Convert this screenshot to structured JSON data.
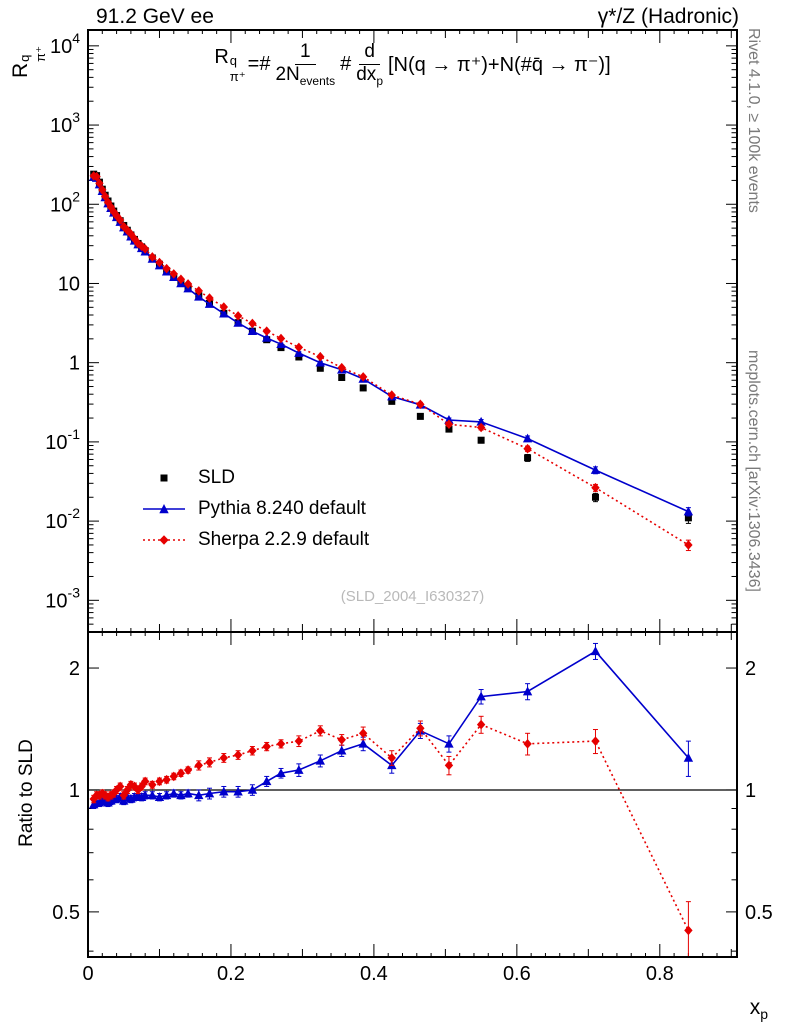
{
  "header": {
    "beam": "91.2 GeV ee",
    "process": "γ*/Z (Hadronic)"
  },
  "side_notes": {
    "top": "Rivet 4.1.0, ≥ 100k events",
    "bottom": "mcplots.cern.ch [arXiv:1306.3436]"
  },
  "watermark": "(SLD_2004_I630327)",
  "axis_labels": {
    "y_main_base": "R",
    "y_main_sup": "q",
    "y_main_sub": "π⁺",
    "y_ratio": "Ratio to SLD",
    "x_base": "x",
    "x_sub": "p"
  },
  "formula": {
    "lhs_base": "R",
    "lhs_sup": "q",
    "lhs_sub": "π⁺",
    "eq": "=#",
    "frac1_num": "1",
    "frac1_den": "2N",
    "frac1_den_sub": "events",
    "sep": "#",
    "frac2_num": "d",
    "frac2_den": "dx",
    "frac2_den_sub": "p",
    "rhs": "[N(q → π⁺)+N(#q̄ → π⁻)]"
  },
  "legend": {
    "items": [
      {
        "label": "SLD",
        "marker": "square",
        "color": "#000000",
        "line": "none"
      },
      {
        "label": "Pythia 8.240 default",
        "marker": "triangle",
        "color": "#0000cc",
        "line": "solid"
      },
      {
        "label": "Sherpa 2.2.9 default",
        "marker": "diamond",
        "color": "#e60000",
        "line": "dotted"
      }
    ]
  },
  "chart_data": [
    {
      "type": "scatter",
      "title": "pi+ scaled momentum spectrum in hadronic Z decays",
      "xlabel": "x_p",
      "ylabel": "R_pi+^q",
      "xlim": [
        0,
        0.908
      ],
      "ylog_range": [
        -3.4,
        4.2
      ],
      "y_tick_exponents": [
        4,
        3,
        2,
        1,
        0,
        -1,
        -2,
        -3
      ],
      "x_ticks": [
        0,
        0.2,
        0.4,
        0.6,
        0.8
      ],
      "x_minor_step": 0.02,
      "x_medium_step": 0.1,
      "x_major_step": 0.2,
      "series": [
        {
          "name": "SLD",
          "marker": "square",
          "color": "#000000",
          "line": "none",
          "x": [
            0.008,
            0.012,
            0.016,
            0.02,
            0.024,
            0.028,
            0.032,
            0.036,
            0.04,
            0.045,
            0.05,
            0.055,
            0.06,
            0.065,
            0.07,
            0.075,
            0.08,
            0.09,
            0.1,
            0.11,
            0.12,
            0.13,
            0.14,
            0.155,
            0.17,
            0.19,
            0.21,
            0.23,
            0.25,
            0.27,
            0.295,
            0.325,
            0.355,
            0.385,
            0.425,
            0.465,
            0.505,
            0.55,
            0.615,
            0.71,
            0.84
          ],
          "y": [
            240,
            230,
            190,
            155,
            130,
            110,
            95,
            82,
            72,
            62,
            54,
            47,
            41,
            36,
            32,
            29,
            26,
            21,
            17.5,
            14.5,
            12.2,
            10.3,
            8.8,
            7.0,
            5.6,
            4.2,
            3.2,
            2.5,
            1.95,
            1.55,
            1.18,
            0.85,
            0.65,
            0.48,
            0.325,
            0.21,
            0.145,
            0.105,
            0.063,
            0.02,
            0.011
          ],
          "yerr_frac": [
            0.04,
            0.04,
            0.04,
            0.04,
            0.04,
            0.04,
            0.04,
            0.04,
            0.04,
            0.04,
            0.04,
            0.04,
            0.04,
            0.04,
            0.04,
            0.04,
            0.04,
            0.04,
            0.04,
            0.04,
            0.04,
            0.04,
            0.04,
            0.04,
            0.04,
            0.04,
            0.04,
            0.04,
            0.04,
            0.04,
            0.05,
            0.05,
            0.05,
            0.06,
            0.06,
            0.07,
            0.08,
            0.08,
            0.1,
            0.12,
            0.15
          ]
        },
        {
          "name": "Pythia 8.240 default",
          "marker": "triangle",
          "color": "#0000cc",
          "line": "solid",
          "x": [
            0.008,
            0.012,
            0.016,
            0.02,
            0.024,
            0.028,
            0.032,
            0.036,
            0.04,
            0.045,
            0.05,
            0.055,
            0.06,
            0.065,
            0.07,
            0.075,
            0.08,
            0.09,
            0.1,
            0.11,
            0.12,
            0.13,
            0.14,
            0.155,
            0.17,
            0.19,
            0.21,
            0.23,
            0.25,
            0.27,
            0.295,
            0.325,
            0.355,
            0.385,
            0.425,
            0.465,
            0.505,
            0.55,
            0.615,
            0.71,
            0.84
          ],
          "y": [
            221,
            214,
            177,
            146,
            122,
            102,
            89.3,
            77.9,
            68.4,
            59.5,
            50.8,
            45.1,
            39,
            34.6,
            31,
            27.8,
            25.2,
            20.4,
            16.8,
            14.1,
            12,
            10,
            8.62,
            6.79,
            5.49,
            4.16,
            3.17,
            2.5,
            2.05,
            1.71,
            1.32,
            1.0,
            0.813,
            0.624,
            0.374,
            0.294,
            0.189,
            0.179,
            0.11,
            0.044,
            0.0132
          ],
          "yerr_frac": [
            0.02,
            0.02,
            0.02,
            0.02,
            0.02,
            0.02,
            0.02,
            0.02,
            0.02,
            0.02,
            0.02,
            0.02,
            0.02,
            0.02,
            0.02,
            0.02,
            0.02,
            0.02,
            0.02,
            0.02,
            0.02,
            0.02,
            0.02,
            0.03,
            0.03,
            0.03,
            0.03,
            0.03,
            0.03,
            0.03,
            0.04,
            0.04,
            0.04,
            0.05,
            0.05,
            0.06,
            0.06,
            0.07,
            0.08,
            0.1,
            0.12
          ]
        },
        {
          "name": "Sherpa 2.2.9 default",
          "marker": "diamond",
          "color": "#e60000",
          "line": "dotted",
          "x": [
            0.008,
            0.012,
            0.016,
            0.02,
            0.024,
            0.028,
            0.032,
            0.036,
            0.04,
            0.045,
            0.05,
            0.055,
            0.06,
            0.065,
            0.07,
            0.075,
            0.08,
            0.09,
            0.1,
            0.11,
            0.12,
            0.13,
            0.14,
            0.155,
            0.17,
            0.19,
            0.21,
            0.23,
            0.25,
            0.27,
            0.295,
            0.325,
            0.355,
            0.385,
            0.425,
            0.465,
            0.505,
            0.55,
            0.615,
            0.71,
            0.84
          ],
          "y": [
            228,
            223,
            184,
            152,
            126,
            106,
            92.2,
            80.4,
            72,
            63.2,
            52.4,
            47,
            42.2,
            36.7,
            32,
            29.6,
            27.3,
            21.6,
            18.4,
            15.4,
            13.2,
            11.3,
            9.86,
            8.05,
            6.55,
            5.04,
            3.9,
            3.13,
            2.5,
            2.02,
            1.56,
            1.19,
            0.865,
            0.662,
            0.39,
            0.298,
            0.167,
            0.152,
            0.082,
            0.0264,
            0.005
          ],
          "yerr_frac": [
            0.02,
            0.02,
            0.02,
            0.02,
            0.02,
            0.02,
            0.02,
            0.02,
            0.02,
            0.02,
            0.02,
            0.02,
            0.02,
            0.02,
            0.02,
            0.02,
            0.02,
            0.02,
            0.02,
            0.02,
            0.02,
            0.02,
            0.02,
            0.03,
            0.03,
            0.03,
            0.03,
            0.03,
            0.03,
            0.03,
            0.04,
            0.04,
            0.04,
            0.05,
            0.05,
            0.06,
            0.06,
            0.07,
            0.08,
            0.1,
            0.15
          ]
        }
      ]
    },
    {
      "type": "ratio",
      "ylabel": "Ratio to SLD",
      "ylog_range": [
        -0.4124,
        0.39
      ],
      "y_ticks": [
        {
          "v": 2,
          "label": "2"
        },
        {
          "v": 1,
          "label": "1"
        },
        {
          "v": 0.5,
          "label": "0.5"
        }
      ],
      "y_minor_ticks": [
        0.4,
        0.6,
        0.7,
        0.8,
        0.9
      ],
      "baseline": 1,
      "series": [
        {
          "name": "Pythia 8.240 default",
          "marker": "triangle",
          "color": "#0000cc",
          "line": "solid",
          "x": [
            0.008,
            0.012,
            0.016,
            0.02,
            0.024,
            0.028,
            0.032,
            0.036,
            0.04,
            0.045,
            0.05,
            0.055,
            0.06,
            0.065,
            0.07,
            0.075,
            0.08,
            0.09,
            0.1,
            0.11,
            0.12,
            0.13,
            0.14,
            0.155,
            0.17,
            0.19,
            0.21,
            0.23,
            0.25,
            0.27,
            0.295,
            0.325,
            0.355,
            0.385,
            0.425,
            0.465,
            0.505,
            0.55,
            0.615,
            0.71,
            0.84
          ],
          "y": [
            0.92,
            0.93,
            0.93,
            0.94,
            0.94,
            0.93,
            0.94,
            0.95,
            0.95,
            0.96,
            0.94,
            0.96,
            0.95,
            0.96,
            0.97,
            0.96,
            0.97,
            0.97,
            0.96,
            0.97,
            0.98,
            0.97,
            0.98,
            0.97,
            0.98,
            0.99,
            0.99,
            1.0,
            1.05,
            1.1,
            1.12,
            1.18,
            1.25,
            1.3,
            1.15,
            1.4,
            1.3,
            1.7,
            1.75,
            2.2,
            1.2
          ],
          "yerr": [
            0.02,
            0.02,
            0.02,
            0.02,
            0.02,
            0.02,
            0.02,
            0.02,
            0.02,
            0.02,
            0.02,
            0.02,
            0.02,
            0.02,
            0.02,
            0.02,
            0.02,
            0.02,
            0.02,
            0.02,
            0.02,
            0.02,
            0.02,
            0.03,
            0.03,
            0.03,
            0.03,
            0.03,
            0.03,
            0.03,
            0.04,
            0.04,
            0.04,
            0.05,
            0.05,
            0.06,
            0.06,
            0.07,
            0.08,
            0.1,
            0.12
          ]
        },
        {
          "name": "Sherpa 2.2.9 default",
          "marker": "diamond",
          "color": "#e60000",
          "line": "dotted",
          "x": [
            0.008,
            0.012,
            0.016,
            0.02,
            0.024,
            0.028,
            0.032,
            0.036,
            0.04,
            0.045,
            0.05,
            0.055,
            0.06,
            0.065,
            0.07,
            0.075,
            0.08,
            0.09,
            0.1,
            0.11,
            0.12,
            0.13,
            0.14,
            0.155,
            0.17,
            0.19,
            0.21,
            0.23,
            0.25,
            0.27,
            0.295,
            0.325,
            0.355,
            0.385,
            0.425,
            0.465,
            0.505,
            0.55,
            0.615,
            0.71,
            0.84
          ],
          "y": [
            0.95,
            0.97,
            0.97,
            0.98,
            0.97,
            0.96,
            0.97,
            0.98,
            1.0,
            1.02,
            0.97,
            1.0,
            1.03,
            1.02,
            1.0,
            1.02,
            1.05,
            1.03,
            1.05,
            1.06,
            1.08,
            1.1,
            1.12,
            1.15,
            1.17,
            1.2,
            1.22,
            1.25,
            1.28,
            1.3,
            1.32,
            1.4,
            1.33,
            1.38,
            1.2,
            1.42,
            1.15,
            1.45,
            1.3,
            1.32,
            0.45
          ],
          "yerr": [
            0.02,
            0.02,
            0.02,
            0.02,
            0.02,
            0.02,
            0.02,
            0.02,
            0.02,
            0.02,
            0.02,
            0.02,
            0.02,
            0.02,
            0.02,
            0.02,
            0.02,
            0.02,
            0.02,
            0.02,
            0.02,
            0.02,
            0.02,
            0.03,
            0.03,
            0.03,
            0.03,
            0.03,
            0.03,
            0.03,
            0.04,
            0.04,
            0.04,
            0.05,
            0.05,
            0.06,
            0.06,
            0.07,
            0.08,
            0.09,
            0.08
          ]
        }
      ]
    }
  ]
}
